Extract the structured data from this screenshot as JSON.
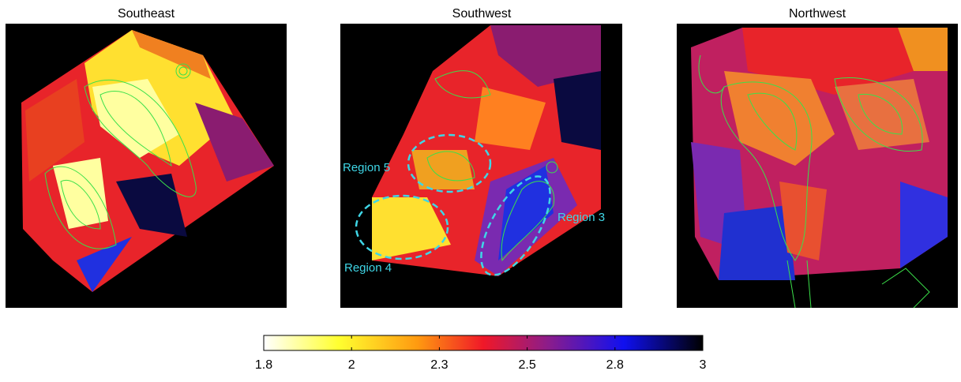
{
  "panels": [
    {
      "title": "Southeast"
    },
    {
      "title": "Southwest",
      "annotations": [
        "Region 5",
        "Region 4",
        "Region 3"
      ]
    },
    {
      "title": "Northwest"
    }
  ],
  "colorbar": {
    "lim": [
      1.8,
      3
    ],
    "ticks": [
      1.8,
      {
        "value": 2.04,
        "label": "2"
      },
      {
        "value": 2.28,
        "label": "2.3"
      },
      {
        "value": 2.52,
        "label": "2.5"
      },
      {
        "value": 2.76,
        "label": "2.8"
      },
      3
    ]
  }
}
